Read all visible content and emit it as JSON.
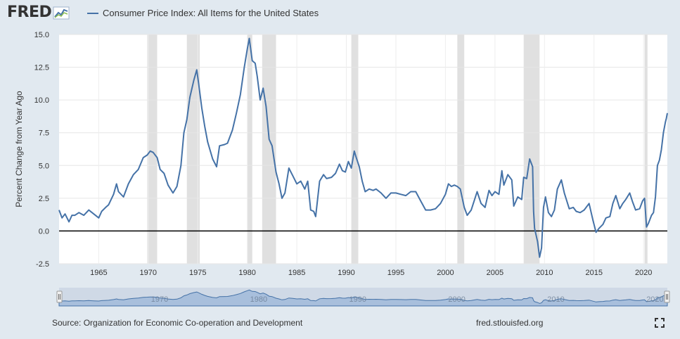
{
  "brand": {
    "logo_text": "FRED"
  },
  "legend": {
    "label": "Consumer Price Index: All Items for the United States",
    "color": "#4572a7"
  },
  "footer": {
    "source": "Source: Organization for Economic Co-operation and Development",
    "site": "fred.stlouisfed.org"
  },
  "icons": {
    "fullscreen": "fullscreen-icon",
    "logo_graph": "chart-trend-icon"
  },
  "colors": {
    "line": "#4572a7",
    "recession": "#e0e0e0",
    "zero_line": "#000000",
    "navigator_fill": "#a8bfdc",
    "navigator_bg": "#cfd9e6"
  },
  "chart_data": {
    "type": "line",
    "title": "",
    "ylabel": "Percent Change from Year Ago",
    "xlabel": "",
    "ylim": [
      -2.5,
      15
    ],
    "xlim": [
      1961.0,
      2022.4
    ],
    "y_ticks": [
      -2.5,
      0.0,
      2.5,
      5.0,
      7.5,
      10.0,
      12.5,
      15.0
    ],
    "y_tick_labels": [
      "-2.5",
      "0.0",
      "2.5",
      "5.0",
      "7.5",
      "10.0",
      "12.5",
      "15.0"
    ],
    "x_ticks": [
      1965,
      1970,
      1975,
      1980,
      1985,
      1990,
      1995,
      2000,
      2005,
      2010,
      2015,
      2020
    ],
    "x_tick_labels": [
      "1965",
      "1970",
      "1975",
      "1980",
      "1985",
      "1990",
      "1995",
      "2000",
      "2005",
      "2010",
      "2015",
      "2020"
    ],
    "navigator_labels": [
      "1970",
      "1980",
      "1990",
      "2000",
      "2010",
      "2020"
    ],
    "grid": true,
    "recessions": [
      [
        1969.9,
        1970.9
      ],
      [
        1973.9,
        1975.2
      ],
      [
        1980.0,
        1980.5
      ],
      [
        1981.5,
        1982.9
      ],
      [
        1990.5,
        1991.2
      ],
      [
        2001.2,
        2001.9
      ],
      [
        2007.9,
        2009.5
      ],
      [
        2020.1,
        2020.4
      ]
    ],
    "series": [
      {
        "name": "Consumer Price Index: All Items for the United States",
        "points": [
          [
            1961.0,
            1.6
          ],
          [
            1961.3,
            1.0
          ],
          [
            1961.6,
            1.3
          ],
          [
            1962.0,
            0.7
          ],
          [
            1962.3,
            1.2
          ],
          [
            1962.6,
            1.2
          ],
          [
            1963.0,
            1.4
          ],
          [
            1963.5,
            1.2
          ],
          [
            1964.0,
            1.6
          ],
          [
            1964.5,
            1.3
          ],
          [
            1965.0,
            1.0
          ],
          [
            1965.3,
            1.5
          ],
          [
            1965.7,
            1.8
          ],
          [
            1966.0,
            2.0
          ],
          [
            1966.5,
            2.8
          ],
          [
            1966.8,
            3.6
          ],
          [
            1967.0,
            3.0
          ],
          [
            1967.5,
            2.6
          ],
          [
            1968.0,
            3.6
          ],
          [
            1968.5,
            4.3
          ],
          [
            1969.0,
            4.7
          ],
          [
            1969.5,
            5.6
          ],
          [
            1969.9,
            5.8
          ],
          [
            1970.2,
            6.1
          ],
          [
            1970.5,
            6.0
          ],
          [
            1970.9,
            5.6
          ],
          [
            1971.2,
            4.7
          ],
          [
            1971.6,
            4.4
          ],
          [
            1972.0,
            3.5
          ],
          [
            1972.5,
            2.9
          ],
          [
            1972.9,
            3.4
          ],
          [
            1973.3,
            5.0
          ],
          [
            1973.6,
            7.5
          ],
          [
            1973.9,
            8.5
          ],
          [
            1974.2,
            10.2
          ],
          [
            1974.6,
            11.5
          ],
          [
            1974.9,
            12.3
          ],
          [
            1975.1,
            11.2
          ],
          [
            1975.4,
            9.4
          ],
          [
            1975.7,
            8.0
          ],
          [
            1976.0,
            6.8
          ],
          [
            1976.5,
            5.5
          ],
          [
            1976.9,
            4.9
          ],
          [
            1977.2,
            6.5
          ],
          [
            1977.7,
            6.6
          ],
          [
            1978.0,
            6.7
          ],
          [
            1978.5,
            7.7
          ],
          [
            1978.9,
            9.0
          ],
          [
            1979.3,
            10.4
          ],
          [
            1979.7,
            12.5
          ],
          [
            1980.0,
            13.9
          ],
          [
            1980.2,
            14.7
          ],
          [
            1980.5,
            13.0
          ],
          [
            1980.8,
            12.8
          ],
          [
            1981.0,
            11.8
          ],
          [
            1981.3,
            10.0
          ],
          [
            1981.6,
            10.9
          ],
          [
            1981.9,
            9.5
          ],
          [
            1982.2,
            7.0
          ],
          [
            1982.5,
            6.5
          ],
          [
            1982.9,
            4.5
          ],
          [
            1983.2,
            3.6
          ],
          [
            1983.5,
            2.5
          ],
          [
            1983.8,
            2.9
          ],
          [
            1984.2,
            4.8
          ],
          [
            1984.6,
            4.2
          ],
          [
            1985.0,
            3.6
          ],
          [
            1985.4,
            3.8
          ],
          [
            1985.8,
            3.2
          ],
          [
            1986.1,
            3.8
          ],
          [
            1986.4,
            1.6
          ],
          [
            1986.7,
            1.5
          ],
          [
            1986.9,
            1.1
          ],
          [
            1987.3,
            3.8
          ],
          [
            1987.7,
            4.3
          ],
          [
            1988.0,
            4.0
          ],
          [
            1988.5,
            4.1
          ],
          [
            1988.9,
            4.4
          ],
          [
            1989.3,
            5.1
          ],
          [
            1989.6,
            4.6
          ],
          [
            1989.9,
            4.5
          ],
          [
            1990.2,
            5.3
          ],
          [
            1990.5,
            4.8
          ],
          [
            1990.8,
            6.1
          ],
          [
            1991.0,
            5.6
          ],
          [
            1991.3,
            4.9
          ],
          [
            1991.6,
            3.8
          ],
          [
            1991.9,
            3.0
          ],
          [
            1992.3,
            3.2
          ],
          [
            1992.7,
            3.1
          ],
          [
            1993.0,
            3.2
          ],
          [
            1993.5,
            2.9
          ],
          [
            1994.0,
            2.5
          ],
          [
            1994.5,
            2.9
          ],
          [
            1995.0,
            2.9
          ],
          [
            1995.5,
            2.8
          ],
          [
            1996.0,
            2.7
          ],
          [
            1996.5,
            3.0
          ],
          [
            1997.0,
            3.0
          ],
          [
            1997.5,
            2.3
          ],
          [
            1998.0,
            1.6
          ],
          [
            1998.5,
            1.6
          ],
          [
            1999.0,
            1.7
          ],
          [
            1999.5,
            2.1
          ],
          [
            2000.0,
            2.8
          ],
          [
            2000.3,
            3.6
          ],
          [
            2000.6,
            3.4
          ],
          [
            2000.9,
            3.5
          ],
          [
            2001.2,
            3.4
          ],
          [
            2001.5,
            3.2
          ],
          [
            2001.9,
            1.8
          ],
          [
            2002.2,
            1.2
          ],
          [
            2002.6,
            1.6
          ],
          [
            2002.9,
            2.3
          ],
          [
            2003.2,
            3.0
          ],
          [
            2003.6,
            2.1
          ],
          [
            2004.0,
            1.8
          ],
          [
            2004.4,
            3.1
          ],
          [
            2004.7,
            2.7
          ],
          [
            2005.0,
            3.0
          ],
          [
            2005.4,
            2.8
          ],
          [
            2005.7,
            4.6
          ],
          [
            2005.9,
            3.5
          ],
          [
            2006.3,
            4.3
          ],
          [
            2006.7,
            3.9
          ],
          [
            2006.9,
            1.9
          ],
          [
            2007.3,
            2.6
          ],
          [
            2007.7,
            2.4
          ],
          [
            2007.9,
            4.1
          ],
          [
            2008.2,
            4.0
          ],
          [
            2008.5,
            5.5
          ],
          [
            2008.8,
            4.9
          ],
          [
            2008.9,
            1.5
          ],
          [
            2009.0,
            0.2
          ],
          [
            2009.3,
            -0.8
          ],
          [
            2009.5,
            -2.0
          ],
          [
            2009.7,
            -1.3
          ],
          [
            2009.9,
            1.8
          ],
          [
            2010.1,
            2.6
          ],
          [
            2010.4,
            1.4
          ],
          [
            2010.7,
            1.1
          ],
          [
            2011.0,
            1.6
          ],
          [
            2011.3,
            3.2
          ],
          [
            2011.7,
            3.9
          ],
          [
            2012.0,
            2.9
          ],
          [
            2012.5,
            1.7
          ],
          [
            2012.9,
            1.8
          ],
          [
            2013.2,
            1.5
          ],
          [
            2013.6,
            1.4
          ],
          [
            2014.0,
            1.6
          ],
          [
            2014.5,
            2.1
          ],
          [
            2014.9,
            0.8
          ],
          [
            2015.2,
            -0.1
          ],
          [
            2015.5,
            0.2
          ],
          [
            2015.9,
            0.5
          ],
          [
            2016.2,
            1.0
          ],
          [
            2016.6,
            1.1
          ],
          [
            2016.9,
            2.1
          ],
          [
            2017.2,
            2.7
          ],
          [
            2017.6,
            1.7
          ],
          [
            2017.9,
            2.1
          ],
          [
            2018.2,
            2.4
          ],
          [
            2018.6,
            2.9
          ],
          [
            2018.9,
            2.2
          ],
          [
            2019.2,
            1.6
          ],
          [
            2019.6,
            1.7
          ],
          [
            2019.9,
            2.3
          ],
          [
            2020.1,
            2.5
          ],
          [
            2020.3,
            0.3
          ],
          [
            2020.5,
            0.6
          ],
          [
            2020.8,
            1.2
          ],
          [
            2021.0,
            1.4
          ],
          [
            2021.2,
            2.6
          ],
          [
            2021.4,
            5.0
          ],
          [
            2021.6,
            5.4
          ],
          [
            2021.8,
            6.2
          ],
          [
            2022.0,
            7.5
          ],
          [
            2022.2,
            8.3
          ],
          [
            2022.3,
            8.6
          ],
          [
            2022.4,
            9.0
          ]
        ]
      }
    ]
  }
}
